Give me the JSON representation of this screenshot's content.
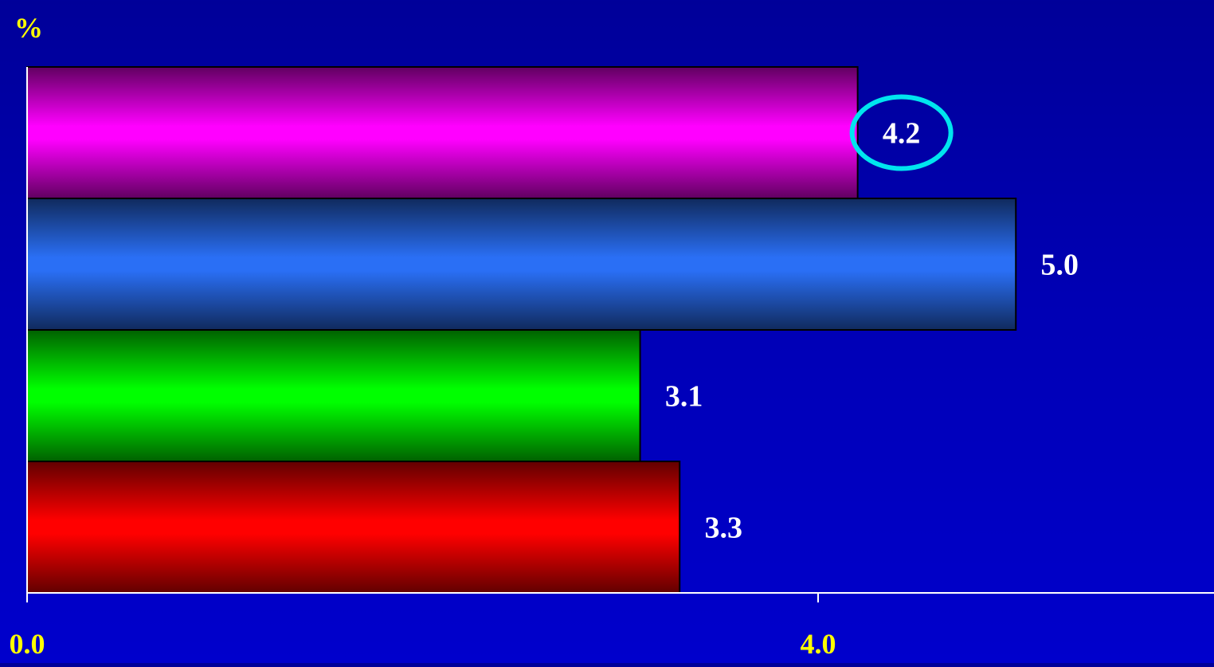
{
  "chart_data": {
    "type": "bar",
    "orientation": "horizontal",
    "ylabel": "%",
    "xlim": [
      0,
      6
    ],
    "x_ticks": [
      "0.0",
      "4.0"
    ],
    "x_tick_values": [
      0,
      4
    ],
    "grid": false,
    "legend": "none",
    "values": [
      4.2,
      5.0,
      3.1,
      3.3
    ],
    "value_labels": [
      "4.2",
      "5.0",
      "3.1",
      "3.3"
    ],
    "colors": [
      "#ff00ff",
      "#2a6ff5",
      "#00ff00",
      "#ff0000"
    ],
    "highlighted_index": 0,
    "highlight_color": "#00e5ee",
    "tick_label_color": "#ffff00",
    "value_label_color": "#ffffff",
    "axis_color": "#ffffff"
  }
}
